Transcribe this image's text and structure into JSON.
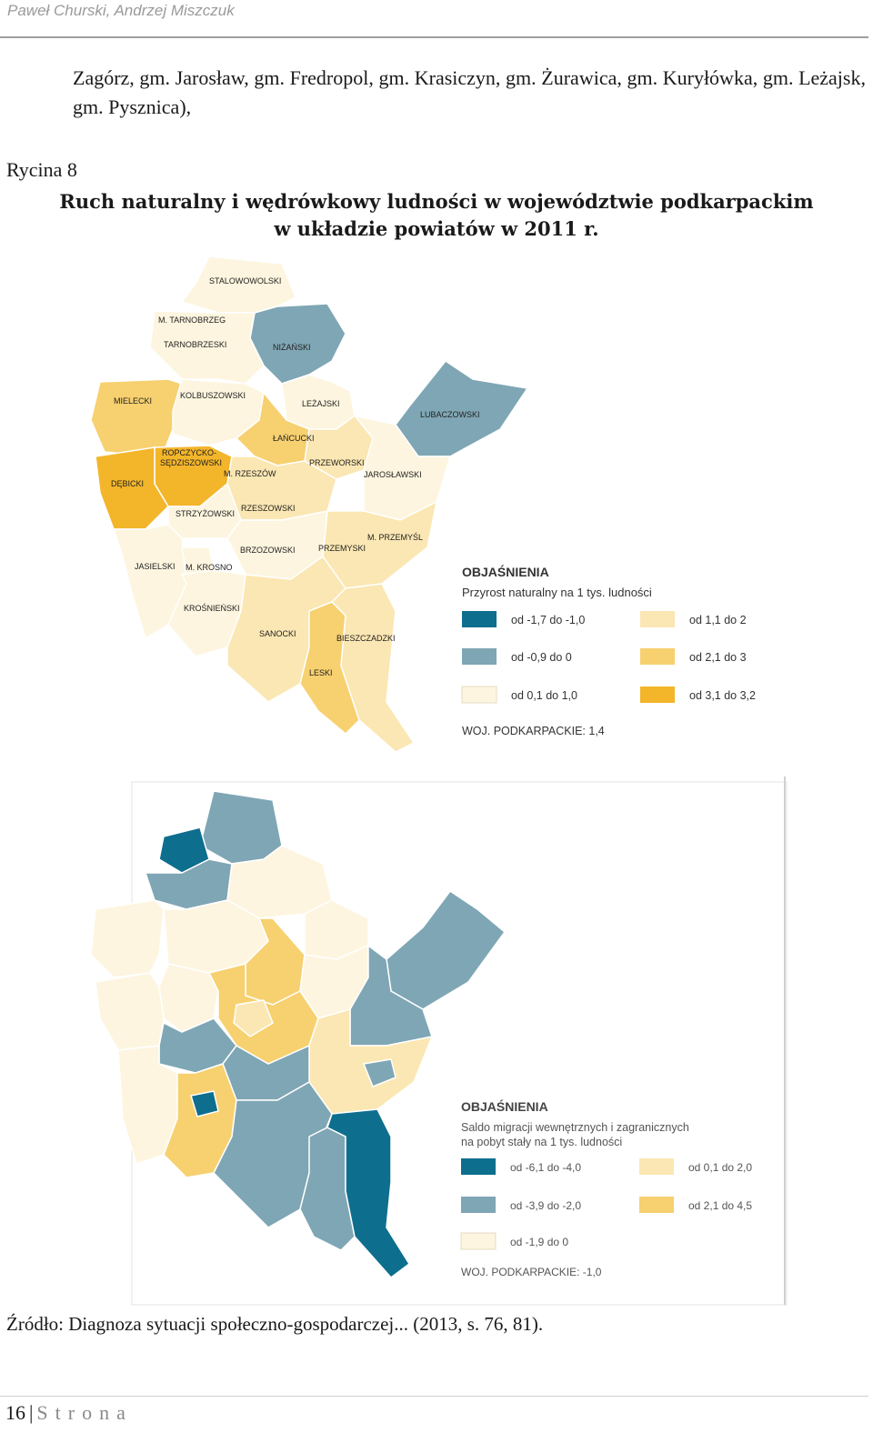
{
  "header": {
    "author": "Paweł Churski, Andrzej Miszczuk"
  },
  "intro_text": "Zagórz, gm. Jarosław, gm. Fredropol, gm. Krasiczyn, gm. Żurawica, gm. Kuryłówka, gm. Leżajsk, gm. Pysznica),",
  "figure": {
    "label": "Rycina 8",
    "title_line1": "Ruch naturalny i wędrówkowy ludności w województwie podkarpackim",
    "title_line2": "w układzie powiatów w 2011 r."
  },
  "map1": {
    "legend_title": "OBJAŚNIENIA",
    "legend_subtitle": "Przyrost naturalny na 1 tys. ludności",
    "legend_items": [
      {
        "label": "od -1,7 do -1,0",
        "color": "#0e6e8e"
      },
      {
        "label": "od -0,9 do 0",
        "color": "#7fa6b4"
      },
      {
        "label": "od 0,1 do 1,0",
        "color": "#fdf5df"
      },
      {
        "label": "od 1,1 do 2",
        "color": "#fbe7b3"
      },
      {
        "label": "od 2,1 do 3",
        "color": "#f7d06f"
      },
      {
        "label": "od 3,1 do 3,2",
        "color": "#f3b52a"
      }
    ],
    "total": "WOJ. PODKARPACKIE: 1,4",
    "regions": {
      "stalowowolski": "STALOWOWOLSKI",
      "m_tarnobrzeg": "M. TARNOBRZEG",
      "tarnobrzeski": "TARNOBRZESKI",
      "nizanski": "NIŻAŃSKI",
      "mielecki": "MIELECKI",
      "kolbuszowski": "KOLBUSZOWSKI",
      "lezajski": "LEŻAJSKI",
      "lubaczowski": "LUBACZOWSKI",
      "lancucki": "ŁAŃCUCKI",
      "ropczycko1": "ROPCZYCKO-",
      "ropczycko2": "SĘDZISZOWSKI",
      "przeworski": "PRZEWORSKI",
      "debicki": "DĘBICKI",
      "m_rzeszow": "M. RZESZÓW",
      "jaroslawski": "JAROSŁAWSKI",
      "strzyzowski": "STRZYŻOWSKI",
      "rzeszowski": "RZESZOWSKI",
      "m_przemysl": "M. PRZEMYŚL",
      "jasielski": "JASIELSKI",
      "m_krosno": "M. KROSNO",
      "brzozowski": "BRZOZOWSKI",
      "przemyski": "PRZEMYSKI",
      "krosnienski": "KROŚNIEŃSKI",
      "sanocki": "SANOCKI",
      "bieszczadzki": "BIESZCZADZKI",
      "leski": "LESKI"
    }
  },
  "map2": {
    "legend_title": "OBJAŚNIENIA",
    "legend_subtitle_line1": "Saldo migracji wewnętrznych i zagranicznych",
    "legend_subtitle_line2": "na pobyt stały na 1 tys. ludności",
    "legend_items": [
      {
        "label": "od -6,1 do -4,0",
        "color": "#0e6e8e"
      },
      {
        "label": "od -3,9 do -2,0",
        "color": "#7fa6b4"
      },
      {
        "label": "od -1,9 do 0",
        "color": "#fdf5df"
      },
      {
        "label": "od 0,1 do 2,0",
        "color": "#fbe7b3"
      },
      {
        "label": "od 2,1 do 4,5",
        "color": "#f7d06f"
      }
    ],
    "total": "WOJ. PODKARPACKIE: -1,0"
  },
  "source": "Źródło: Diagnoza sytuacji społeczno-gospodarczej... (2013, s. 76, 81).",
  "footer": {
    "page_number": "16",
    "page_word": "Strona"
  },
  "colors": {
    "c1": "#0e6e8e",
    "c2": "#7fa6b4",
    "c3": "#fdf5df",
    "c4": "#fbe7b3",
    "c5": "#f7d06f",
    "c6": "#f3b52a"
  }
}
